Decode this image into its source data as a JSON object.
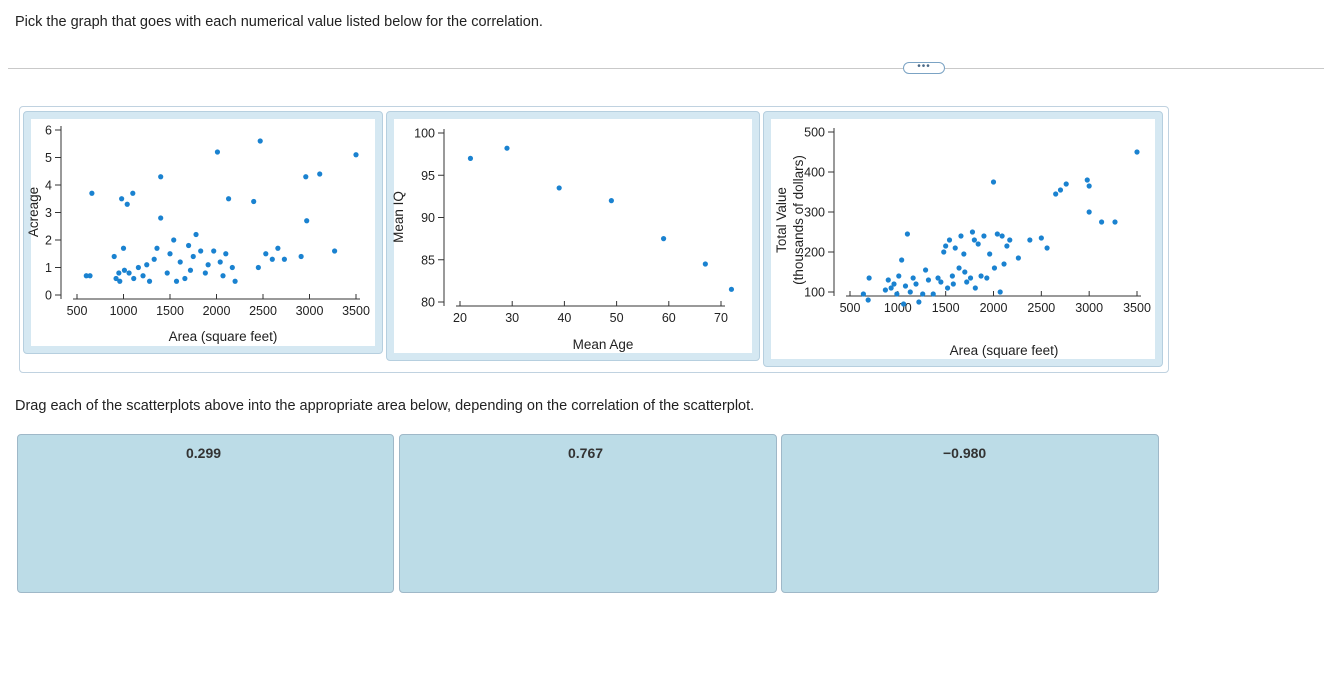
{
  "instruction": "Pick the graph that goes with each numerical value listed below for the correlation.",
  "more_button": "•••",
  "drag_instruction": "Drag each of the scatterplots above into the appropriate area below, depending on the correlation of the scatterplot.",
  "drop_zones": [
    {
      "label": "0.299"
    },
    {
      "label": "0.767"
    },
    {
      "label": "−0.980"
    }
  ],
  "colors": {
    "point": "#1a82d0",
    "zone": "#bcdce7",
    "card": "#d5e8f2"
  },
  "chart_data": [
    {
      "type": "scatter",
      "title": "",
      "xlabel": "Area (square feet)",
      "ylabel": "Acreage",
      "xlim": [
        500,
        3500
      ],
      "ylim": [
        0,
        6
      ],
      "xticks": [
        "500",
        "1000",
        "1500",
        "2000",
        "2500",
        "3000",
        "3500"
      ],
      "yticks": [
        "0",
        "1",
        "2",
        "3",
        "4",
        "5",
        "6"
      ],
      "points": [
        [
          600,
          0.7
        ],
        [
          640,
          0.7
        ],
        [
          660,
          3.7
        ],
        [
          900,
          1.4
        ],
        [
          950,
          0.8
        ],
        [
          980,
          3.5
        ],
        [
          1040,
          3.3
        ],
        [
          1000,
          1.7
        ],
        [
          1100,
          3.7
        ],
        [
          920,
          0.6
        ],
        [
          960,
          0.5
        ],
        [
          1010,
          0.9
        ],
        [
          1060,
          0.8
        ],
        [
          1110,
          0.6
        ],
        [
          1160,
          1.0
        ],
        [
          1210,
          0.7
        ],
        [
          1250,
          1.1
        ],
        [
          1280,
          0.5
        ],
        [
          1330,
          1.3
        ],
        [
          1360,
          1.7
        ],
        [
          1400,
          4.3
        ],
        [
          1400,
          2.8
        ],
        [
          1470,
          0.8
        ],
        [
          1500,
          1.5
        ],
        [
          1540,
          2.0
        ],
        [
          1570,
          0.5
        ],
        [
          1610,
          1.2
        ],
        [
          1660,
          0.6
        ],
        [
          1700,
          1.8
        ],
        [
          1720,
          0.9
        ],
        [
          1750,
          1.4
        ],
        [
          1780,
          2.2
        ],
        [
          1830,
          1.6
        ],
        [
          1880,
          0.8
        ],
        [
          1910,
          1.1
        ],
        [
          1970,
          1.6
        ],
        [
          2010,
          5.2
        ],
        [
          2040,
          1.2
        ],
        [
          2070,
          0.7
        ],
        [
          2100,
          1.5
        ],
        [
          2130,
          3.5
        ],
        [
          2170,
          1.0
        ],
        [
          2200,
          0.5
        ],
        [
          2400,
          3.4
        ],
        [
          2450,
          1.0
        ],
        [
          2470,
          5.6
        ],
        [
          2530,
          1.5
        ],
        [
          2600,
          1.3
        ],
        [
          2660,
          1.7
        ],
        [
          2730,
          1.3
        ],
        [
          2910,
          1.4
        ],
        [
          2960,
          4.3
        ],
        [
          2970,
          2.7
        ],
        [
          3110,
          4.4
        ],
        [
          3270,
          1.6
        ],
        [
          3500,
          5.1
        ]
      ]
    },
    {
      "type": "scatter",
      "title": "",
      "xlabel": "Mean Age",
      "ylabel": "Mean IQ",
      "xlim": [
        20,
        70
      ],
      "ylim": [
        80,
        100
      ],
      "xticks": [
        "20",
        "30",
        "40",
        "50",
        "60",
        "70"
      ],
      "yticks": [
        "80",
        "85",
        "90",
        "95",
        "100"
      ],
      "points": [
        [
          22,
          97
        ],
        [
          29,
          98.2
        ],
        [
          39,
          93.5
        ],
        [
          49,
          92
        ],
        [
          59,
          87.5
        ],
        [
          67,
          84.5
        ],
        [
          72,
          81.5
        ]
      ]
    },
    {
      "type": "scatter",
      "title": "",
      "xlabel": "Area (square feet)",
      "ylabel": "Total Value",
      "ylabel2": "(thousands of dollars)",
      "xlim": [
        500,
        3500
      ],
      "ylim": [
        100,
        500
      ],
      "xticks": [
        "500",
        "1000",
        "1500",
        "2000",
        "2500",
        "3000",
        "3500"
      ],
      "yticks": [
        "100",
        "200",
        "300",
        "400",
        "500"
      ],
      "points": [
        [
          640,
          95
        ],
        [
          690,
          80
        ],
        [
          700,
          135
        ],
        [
          870,
          105
        ],
        [
          900,
          130
        ],
        [
          930,
          110
        ],
        [
          960,
          120
        ],
        [
          990,
          95
        ],
        [
          1010,
          140
        ],
        [
          1040,
          180
        ],
        [
          1060,
          70
        ],
        [
          1080,
          115
        ],
        [
          1100,
          245
        ],
        [
          1130,
          100
        ],
        [
          1160,
          135
        ],
        [
          1190,
          120
        ],
        [
          1220,
          75
        ],
        [
          1260,
          95
        ],
        [
          1290,
          155
        ],
        [
          1320,
          130
        ],
        [
          1370,
          95
        ],
        [
          1420,
          135
        ],
        [
          1450,
          125
        ],
        [
          1480,
          200
        ],
        [
          1500,
          215
        ],
        [
          1520,
          110
        ],
        [
          1540,
          230
        ],
        [
          1570,
          140
        ],
        [
          1580,
          120
        ],
        [
          1600,
          210
        ],
        [
          1640,
          160
        ],
        [
          1660,
          240
        ],
        [
          1690,
          195
        ],
        [
          1700,
          150
        ],
        [
          1720,
          125
        ],
        [
          1760,
          135
        ],
        [
          1780,
          250
        ],
        [
          1800,
          230
        ],
        [
          1810,
          110
        ],
        [
          1840,
          220
        ],
        [
          1870,
          140
        ],
        [
          1900,
          240
        ],
        [
          1930,
          135
        ],
        [
          1960,
          195
        ],
        [
          2000,
          375
        ],
        [
          2010,
          160
        ],
        [
          2040,
          245
        ],
        [
          2070,
          100
        ],
        [
          2090,
          240
        ],
        [
          2110,
          170
        ],
        [
          2140,
          215
        ],
        [
          2170,
          230
        ],
        [
          2260,
          185
        ],
        [
          2380,
          230
        ],
        [
          2500,
          235
        ],
        [
          2560,
          210
        ],
        [
          2650,
          345
        ],
        [
          2700,
          355
        ],
        [
          2760,
          370
        ],
        [
          2980,
          380
        ],
        [
          3000,
          365
        ],
        [
          3000,
          300
        ],
        [
          3130,
          275
        ],
        [
          3270,
          275
        ],
        [
          3500,
          450
        ]
      ]
    }
  ]
}
